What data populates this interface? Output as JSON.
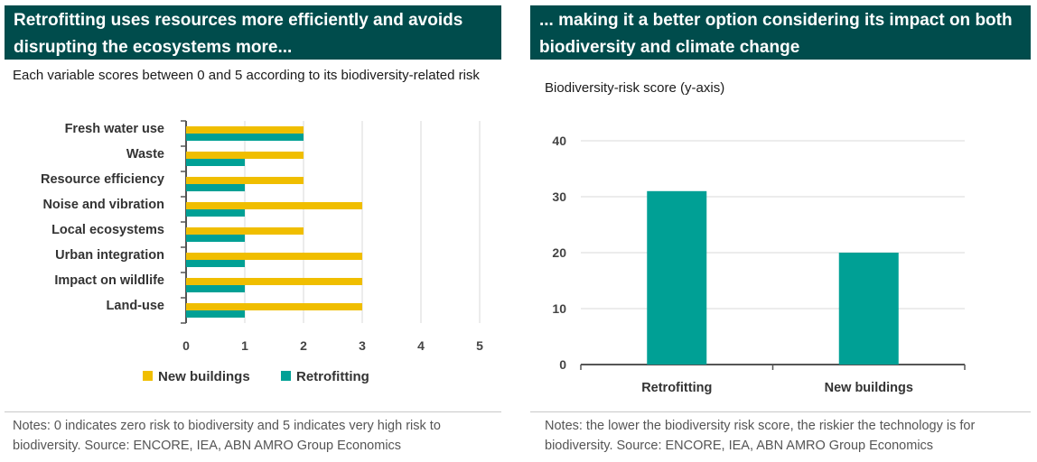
{
  "left_panel": {
    "title": "Retrofitting uses resources more efficiently and avoids disrupting the ecosystems more...",
    "subtitle": "Each variable scores between 0 and 5 according to its biodiversity-related risk",
    "notes": "Notes: 0 indicates zero risk to biodiversity and 5 indicates very high risk to biodiversity. Source: ENCORE, IEA, ABN AMRO Group Economics"
  },
  "right_panel": {
    "title": "... making it a better option considering its impact on both biodiversity and climate change",
    "subtitle": "Biodiversity-risk score (y-axis)",
    "notes": "Notes: the lower the biodiversity risk score, the riskier the technology is for biodiversity. Source: ENCORE, IEA, ABN AMRO Group Economics"
  },
  "colors": {
    "new_buildings": "#f0be00",
    "retrofitting": "#00a095",
    "grid": "#d9d9d9",
    "axis": "#555555"
  },
  "chart_data": [
    {
      "type": "bar",
      "orientation": "horizontal",
      "categories": [
        "Fresh water use",
        "Waste",
        "Resource efficiency",
        "Noise and vibration",
        "Local ecosystems",
        "Urban integration",
        "Impact on wildlife",
        "Land-use"
      ],
      "series": [
        {
          "name": "New buildings",
          "values": [
            2,
            2,
            2,
            3,
            2,
            3,
            3,
            3
          ]
        },
        {
          "name": "Retrofitting",
          "values": [
            2,
            1,
            1,
            1,
            1,
            1,
            1,
            1
          ]
        }
      ],
      "xlim": [
        0,
        5
      ],
      "xticks": [
        0,
        1,
        2,
        3,
        4,
        5
      ],
      "grid": "vertical",
      "legend": "bottom"
    },
    {
      "type": "bar",
      "categories": [
        "Retrofitting",
        "New buildings"
      ],
      "values": [
        31,
        20
      ],
      "ylim": [
        0,
        40
      ],
      "yticks": [
        0,
        10,
        20,
        30,
        40
      ],
      "grid": "horizontal"
    }
  ]
}
